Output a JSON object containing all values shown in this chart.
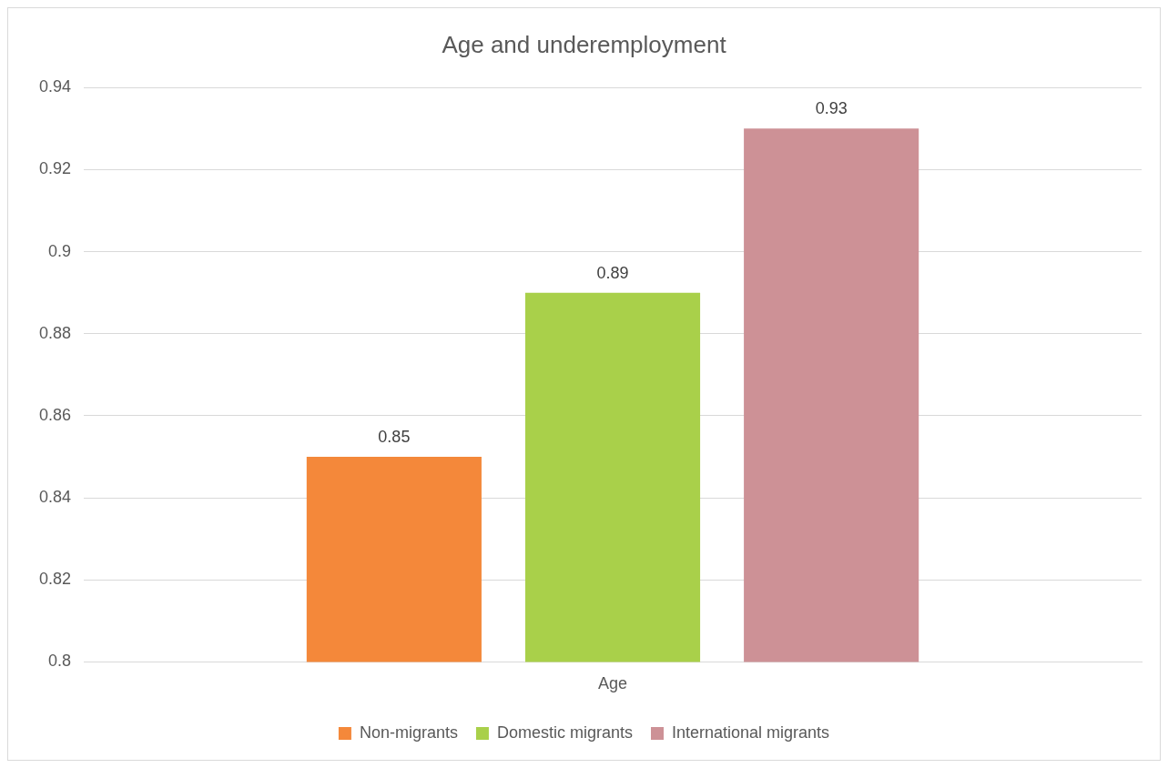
{
  "chart_data": {
    "type": "bar",
    "title": "Age and underemployment",
    "categories": [
      "Age"
    ],
    "series": [
      {
        "name": "Non-migrants",
        "color": "#f4883a",
        "values": [
          0.85
        ]
      },
      {
        "name": "Domestic migrants",
        "color": "#a9d04a",
        "values": [
          0.89
        ]
      },
      {
        "name": "International migrants",
        "color": "#cd9196",
        "values": [
          0.93
        ]
      }
    ],
    "ylim": [
      0.8,
      0.94
    ],
    "yticks": [
      0.8,
      0.82,
      0.84,
      0.86,
      0.88,
      0.9,
      0.92,
      0.94
    ],
    "grid": "y",
    "legend": "bottom",
    "data_labels": true
  }
}
